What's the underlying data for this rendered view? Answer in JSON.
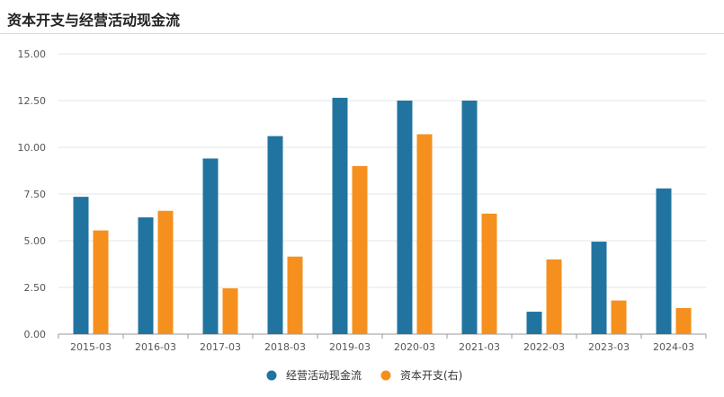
{
  "header": {
    "title": "资本开支与经营活动现金流"
  },
  "chart_data": {
    "type": "bar",
    "title": "资本开支与经营活动现金流",
    "categories": [
      "2015-03",
      "2016-03",
      "2017-03",
      "2018-03",
      "2019-03",
      "2020-03",
      "2021-03",
      "2022-03",
      "2023-03",
      "2024-03"
    ],
    "series": [
      {
        "name": "经营活动现金流",
        "color": "#2274a0",
        "values": [
          7.35,
          6.25,
          9.4,
          10.6,
          12.65,
          12.5,
          12.5,
          1.2,
          4.95,
          7.8
        ]
      },
      {
        "name": "资本开支(右)",
        "color": "#f5901e",
        "values": [
          5.55,
          6.6,
          2.45,
          4.15,
          9.0,
          10.7,
          6.45,
          4.0,
          1.8,
          1.4
        ]
      }
    ],
    "yticks": [
      "0.00",
      "2.50",
      "5.00",
      "7.50",
      "10.00",
      "12.50",
      "15.00"
    ],
    "ylim": [
      0,
      15
    ],
    "xlabel": "",
    "ylabel": "",
    "grid": true,
    "legend": "bottom-center"
  }
}
